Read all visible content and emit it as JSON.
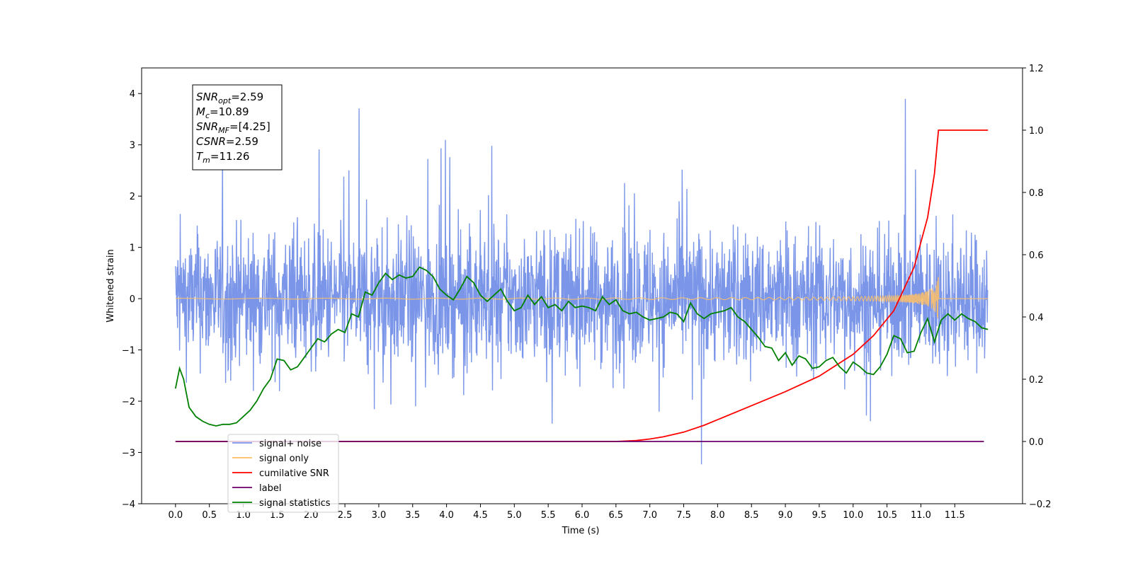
{
  "chart_data": {
    "type": "line",
    "xlabel": "Time (s)",
    "ylabel": "Whitened strain",
    "xlim": [
      -0.5,
      12.5
    ],
    "ylim": [
      -4,
      4.5
    ],
    "y2lim": [
      -0.2,
      1.2
    ],
    "x_ticks": [
      0.0,
      0.5,
      1.0,
      1.5,
      2.0,
      2.5,
      3.0,
      3.5,
      4.0,
      4.5,
      5.0,
      5.5,
      6.0,
      6.5,
      7.0,
      7.5,
      8.0,
      8.5,
      9.0,
      9.5,
      10.0,
      10.5,
      11.0,
      11.5
    ],
    "x_tick_labels": [
      "0.0",
      "0.5",
      "1.0",
      "1.5",
      "2.0",
      "2.5",
      "3.0",
      "3.5",
      "4.0",
      "4.5",
      "5.0",
      "5.5",
      "6.0",
      "6.5",
      "7.0",
      "7.5",
      "8.0",
      "8.5",
      "9.0",
      "9.5",
      "10.0",
      "10.5",
      "11.0",
      "11.5"
    ],
    "y_ticks": [
      -4,
      -3,
      -2,
      -1,
      0,
      1,
      2,
      3,
      4
    ],
    "y_tick_labels": [
      "−4",
      "−3",
      "−2",
      "−1",
      "0",
      "1",
      "2",
      "3",
      "4"
    ],
    "y2_ticks": [
      -0.2,
      0.0,
      0.2,
      0.4,
      0.6,
      0.8,
      1.0,
      1.2
    ],
    "y2_tick_labels": [
      "−0.2",
      "0.0",
      "0.2",
      "0.4",
      "0.6",
      "0.8",
      "1.0",
      "1.2"
    ],
    "grid": false,
    "legend_position": "lower-left",
    "legend": [
      {
        "label": "signal+ noise",
        "color": "#7b96e8"
      },
      {
        "label": "signal only",
        "color": "#ffbf66"
      },
      {
        "label": "cumilative SNR",
        "color": "#ff0000"
      },
      {
        "label": "label",
        "color": "#6a006a"
      },
      {
        "label": "signal statistics",
        "color": "#008000"
      }
    ],
    "info_box": [
      {
        "main": "SNR",
        "sub": "opt",
        "value": "=2.59"
      },
      {
        "main": "M",
        "sub": "c",
        "value": "=10.89"
      },
      {
        "main": "SNR",
        "sub": "MF",
        "value": "=[4.25]"
      },
      {
        "main": "CSNR",
        "sub": "",
        "value": "=2.59"
      },
      {
        "main": "T",
        "sub": "m",
        "value": "=11.26"
      }
    ],
    "series": [
      {
        "name": "signal+ noise",
        "axis": "left",
        "color": "#7b96e8",
        "style": "noise",
        "x_range": [
          0.0,
          11.99
        ],
        "band": [
          -1.6,
          1.55
        ],
        "spike_max": [
          4.1,
          4.1,
          3.95,
          3.4,
          3.3
        ],
        "spike_min": [
          -3.65,
          -3.6,
          -3.6,
          -3.5,
          -3.0
        ]
      },
      {
        "name": "signal only",
        "axis": "left",
        "color": "#ffbf66",
        "style": "chirp",
        "x_range": [
          0.0,
          11.99
        ],
        "merger_time": 11.26,
        "peak_amplitude": 0.45
      },
      {
        "name": "cumilative SNR",
        "axis": "right",
        "color": "#ff0000",
        "x": [
          0.0,
          6.5,
          6.8,
          7.0,
          7.2,
          7.5,
          7.8,
          8.0,
          8.5,
          9.0,
          9.5,
          10.0,
          10.3,
          10.6,
          10.9,
          11.1,
          11.2,
          11.26,
          11.99
        ],
        "values": [
          0.0,
          0.0,
          0.003,
          0.008,
          0.015,
          0.03,
          0.052,
          0.07,
          0.115,
          0.16,
          0.21,
          0.28,
          0.34,
          0.42,
          0.56,
          0.72,
          0.86,
          1.0,
          1.0
        ]
      },
      {
        "name": "label",
        "axis": "right",
        "color": "#6a006a",
        "x": [
          0.0,
          11.93
        ],
        "values": [
          0.0,
          0.0
        ]
      },
      {
        "name": "signal statistics",
        "axis": "right",
        "color": "#008000",
        "x": [
          0.0,
          0.06,
          0.12,
          0.2,
          0.3,
          0.4,
          0.5,
          0.6,
          0.7,
          0.8,
          0.9,
          1.0,
          1.1,
          1.2,
          1.3,
          1.4,
          1.5,
          1.6,
          1.7,
          1.8,
          1.9,
          2.0,
          2.1,
          2.2,
          2.3,
          2.4,
          2.5,
          2.6,
          2.7,
          2.8,
          2.9,
          3.0,
          3.1,
          3.2,
          3.3,
          3.4,
          3.5,
          3.6,
          3.7,
          3.8,
          3.9,
          4.0,
          4.1,
          4.2,
          4.3,
          4.4,
          4.5,
          4.6,
          4.7,
          4.8,
          4.9,
          5.0,
          5.1,
          5.2,
          5.3,
          5.4,
          5.5,
          5.6,
          5.7,
          5.8,
          5.9,
          6.0,
          6.1,
          6.2,
          6.3,
          6.4,
          6.5,
          6.6,
          6.7,
          6.8,
          6.9,
          7.0,
          7.1,
          7.2,
          7.3,
          7.4,
          7.5,
          7.6,
          7.7,
          7.8,
          7.9,
          8.0,
          8.1,
          8.2,
          8.3,
          8.4,
          8.5,
          8.6,
          8.7,
          8.8,
          8.9,
          9.0,
          9.1,
          9.2,
          9.3,
          9.4,
          9.5,
          9.6,
          9.7,
          9.8,
          9.9,
          10.0,
          10.1,
          10.2,
          10.3,
          10.4,
          10.5,
          10.6,
          10.7,
          10.8,
          10.9,
          11.0,
          11.1,
          11.2,
          11.3,
          11.4,
          11.5,
          11.6,
          11.7,
          11.8,
          11.9,
          11.99
        ],
        "values": [
          0.17,
          0.235,
          0.2,
          0.11,
          0.08,
          0.065,
          0.055,
          0.05,
          0.055,
          0.055,
          0.06,
          0.08,
          0.1,
          0.13,
          0.17,
          0.2,
          0.265,
          0.26,
          0.23,
          0.24,
          0.27,
          0.3,
          0.33,
          0.32,
          0.345,
          0.36,
          0.35,
          0.41,
          0.4,
          0.48,
          0.47,
          0.51,
          0.54,
          0.52,
          0.535,
          0.525,
          0.53,
          0.56,
          0.55,
          0.53,
          0.49,
          0.47,
          0.455,
          0.49,
          0.53,
          0.51,
          0.47,
          0.45,
          0.47,
          0.49,
          0.45,
          0.42,
          0.43,
          0.47,
          0.44,
          0.465,
          0.43,
          0.44,
          0.42,
          0.45,
          0.43,
          0.435,
          0.43,
          0.42,
          0.465,
          0.44,
          0.455,
          0.42,
          0.41,
          0.415,
          0.4,
          0.39,
          0.395,
          0.4,
          0.415,
          0.41,
          0.385,
          0.445,
          0.41,
          0.395,
          0.41,
          0.415,
          0.42,
          0.43,
          0.4,
          0.385,
          0.36,
          0.335,
          0.305,
          0.3,
          0.26,
          0.285,
          0.245,
          0.275,
          0.265,
          0.235,
          0.24,
          0.26,
          0.27,
          0.24,
          0.22,
          0.255,
          0.24,
          0.22,
          0.215,
          0.24,
          0.28,
          0.34,
          0.33,
          0.285,
          0.29,
          0.35,
          0.395,
          0.32,
          0.39,
          0.41,
          0.39,
          0.41,
          0.395,
          0.385,
          0.365,
          0.36
        ]
      }
    ]
  }
}
